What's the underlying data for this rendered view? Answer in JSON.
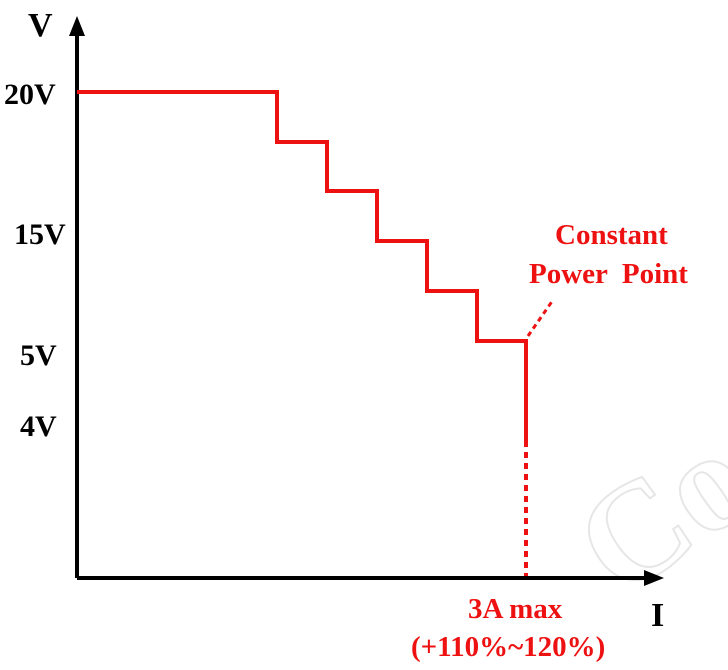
{
  "chart_data": {
    "type": "line",
    "title": "",
    "xlabel": "I",
    "ylabel": "V",
    "y_ticks": [
      "20V",
      "15V",
      "5V",
      "4V"
    ],
    "series": [
      {
        "points": [
          {
            "x": "0",
            "y": "20V"
          },
          {
            "x": "step-1",
            "y": "~18V"
          },
          {
            "x": "step-2",
            "y": "~16V"
          },
          {
            "x": "step-3",
            "y": "~14V"
          },
          {
            "x": "step-4",
            "y": "~12V"
          },
          {
            "x": "3A max",
            "y": "~10V"
          },
          {
            "x": "3A max",
            "y": "4V"
          }
        ]
      }
    ],
    "annotations": {
      "constant_power_line1": "Constant",
      "constant_power_line2": "Power  Point",
      "current_max_line1": "3A max",
      "current_max_line2": "(+110%~120%)"
    },
    "colors": {
      "curve": "#ee1111",
      "axis": "#000000",
      "watermark": "#e6e6e6"
    },
    "grid": false,
    "watermark_text": "Co"
  }
}
